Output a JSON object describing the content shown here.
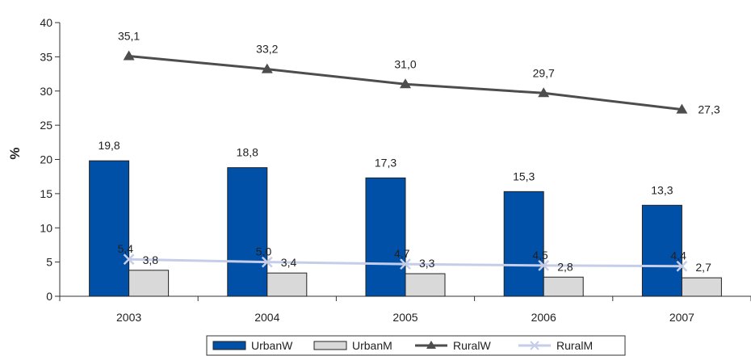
{
  "chart_data": {
    "type": "bar",
    "ylabel": "%",
    "ylim": [
      0,
      40
    ],
    "yticks": [
      0,
      5,
      10,
      15,
      20,
      25,
      30,
      35,
      40
    ],
    "categories": [
      "2003",
      "2004",
      "2005",
      "2006",
      "2007"
    ],
    "decimal_separator": ",",
    "legend": "bottom",
    "grid": false,
    "series": [
      {
        "name": "UrbanW",
        "kind": "bar",
        "color": "#0050A8",
        "values": [
          19.8,
          18.8,
          17.3,
          15.3,
          13.3
        ],
        "labels": [
          "19,8",
          "18,8",
          "17,3",
          "15,3",
          "13,3"
        ]
      },
      {
        "name": "UrbanM",
        "kind": "bar",
        "color": "#D9D9D9",
        "values": [
          3.8,
          3.4,
          3.3,
          2.8,
          2.7
        ],
        "labels": [
          "3,8",
          "3,4",
          "3,3",
          "2,8",
          "2,7"
        ]
      },
      {
        "name": "RuralW",
        "kind": "line",
        "marker": "triangle",
        "color": "#4D4D4D",
        "values": [
          35.1,
          33.2,
          31.0,
          29.7,
          27.3
        ],
        "labels": [
          "35,1",
          "33,2",
          "31,0",
          "29,7",
          "27,3"
        ]
      },
      {
        "name": "RuralM",
        "kind": "line",
        "marker": "x",
        "color": "#C5CDE8",
        "values": [
          5.4,
          5.0,
          4.7,
          4.5,
          4.4
        ],
        "labels": [
          "5,4",
          "5,0",
          "4,7",
          "4,5",
          "4,4"
        ]
      }
    ]
  }
}
